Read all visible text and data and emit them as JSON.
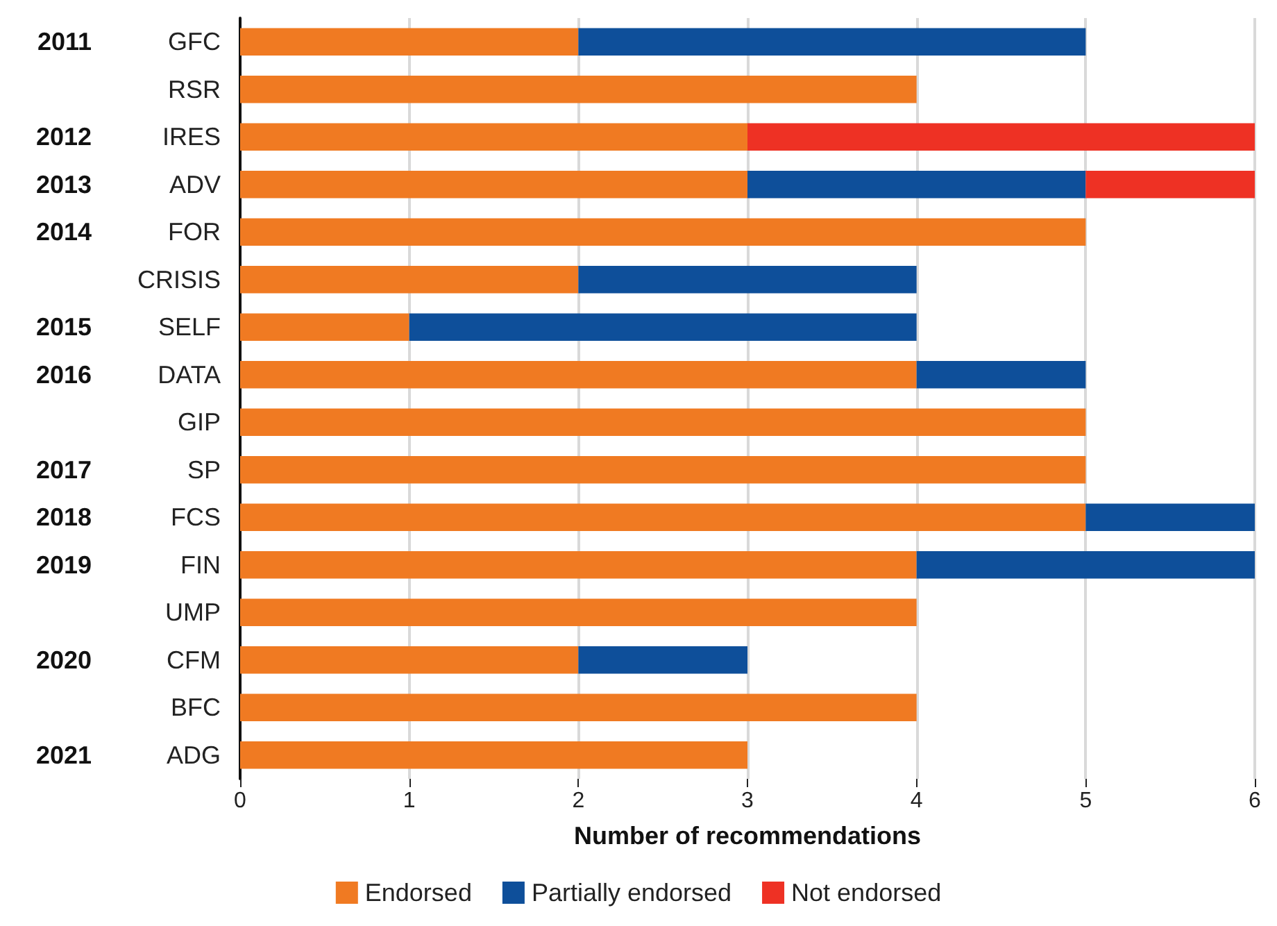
{
  "chart_data": {
    "type": "bar",
    "orientation": "horizontal",
    "stacked": true,
    "categories": [
      "GFC",
      "RSR",
      "IRES",
      "ADV",
      "FOR",
      "CRISIS",
      "SELF",
      "DATA",
      "GIP",
      "SP",
      "FCS",
      "FIN",
      "UMP",
      "CFM",
      "BFC",
      "ADG"
    ],
    "series": [
      {
        "name": "Endorsed",
        "color": "#f07a22",
        "values": [
          2,
          4,
          3,
          3,
          5,
          2,
          1,
          4,
          5,
          5,
          5,
          4,
          4,
          2,
          4,
          3
        ]
      },
      {
        "name": "Partially endorsed",
        "color": "#0e4f9a",
        "values": [
          3,
          null,
          null,
          2,
          null,
          2,
          3,
          1,
          null,
          null,
          1,
          2,
          null,
          1,
          null,
          null
        ]
      },
      {
        "name": "Not endorsed",
        "color": "#ee3124",
        "values": [
          null,
          null,
          3,
          1,
          null,
          null,
          null,
          null,
          null,
          null,
          null,
          null,
          null,
          null,
          null,
          null
        ]
      }
    ],
    "y2_categories": [
      "2011",
      null,
      "2012",
      "2013",
      "2014",
      null,
      "2015",
      "2016",
      null,
      "2017",
      "2018",
      "2019",
      null,
      "2020",
      null,
      "2021"
    ],
    "xlabel": "Number of recommendations",
    "xlim": [
      0,
      6
    ],
    "xticks": [
      0,
      1,
      2,
      3,
      4,
      5,
      6
    ],
    "grid": "x",
    "legend": "bottom"
  }
}
